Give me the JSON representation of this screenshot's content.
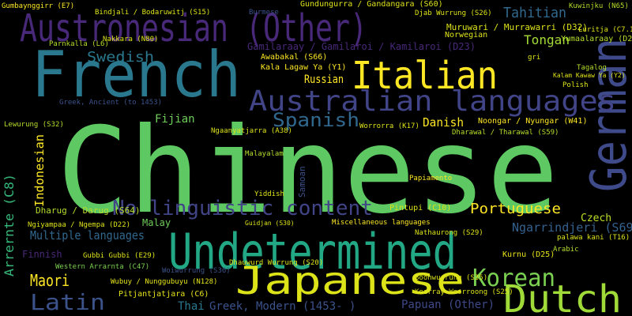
{
  "words": [
    "Chinese",
    "French",
    "Austronesian (Other)",
    "German",
    "Italian",
    "Australian languages",
    "Undetermined",
    "Japanese",
    "Dutch",
    "Korean",
    "Latin",
    "Maori",
    "Spanish",
    "Tahitian",
    "Tongan",
    "Swedish",
    "Russian",
    "Danish",
    "No linguistic content",
    "Portuguese",
    "Indonesian",
    "Arrernte (C8)",
    "Multiple languages",
    "Finnish",
    "Fijian",
    "Ngarrindjeri (S69)",
    "Czech",
    "Papuan (Other)",
    "Greek, Modern (1453- )",
    "Thai",
    "Malay",
    "Dharug / Darug (S64)",
    "Kurnu (D25)",
    "Samoan",
    "Wubuy / Nunggubuyu (N128)",
    "Pitjantjatjara (C6)",
    "Western Arrarnta (C47)",
    "Gumbaynggirr (E7)",
    "Norwegian",
    "Polish",
    "Tagalog",
    "Kala Lagaw Ya (Y1)",
    "Awabakal (S66)",
    "Gamilaraay / Gamilaroi / Kamilaroi (D23)",
    "Muruwari / Murrawarri (D32)",
    "Yumaalaraay (D27)",
    "Luritja (C7.1)",
    "Kuwinjku (N65)",
    "Gundungurra / Gandangara (S60)",
    "Djab Wurrung (S26)",
    "Bindjali / Bodaruwitj (S15)",
    "Burmese",
    "Miscellaneous languages",
    "Greek, Ancient (to 1453)",
    "Lewurung (S32)",
    "Parnkalla (L6)",
    "Nakkara (N80)",
    "Noongar / Nyungar (W41)",
    "Dharawal / Tharawal (S59)",
    "Worrorra (K17)",
    "Papiamento",
    "Yiddish",
    "Malayalam",
    "Pintupi (C10)",
    "Ngaanyatjarra (A38)",
    "Nathaurong (S29)",
    "Boonwurrung (S35)",
    "Keerray Woorroong (S25)",
    "Ngiyampaa / Ngempa (D22)",
    "Gubbi Gubbi (E29)",
    "Woiwurrung (S36)",
    "Dhauwurd Wurrung (S20)",
    "Arabic",
    "palawa kani (T16)",
    "Guidjan (S30)",
    "Kalam Kawaw Ya (Y2)",
    "gri"
  ]
}
